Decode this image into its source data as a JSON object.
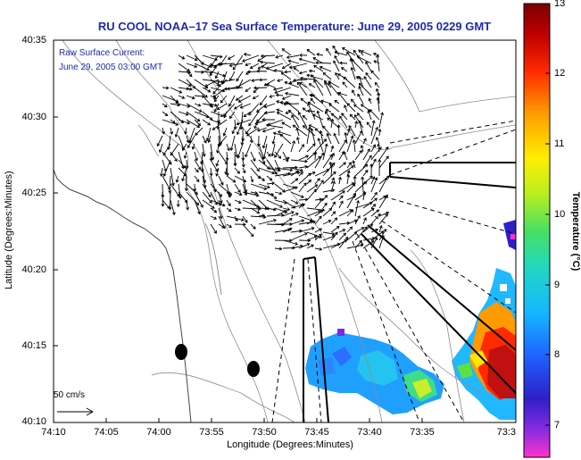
{
  "title": "RU COOL  NOAA–17  Sea Surface Temperature:  June 29, 2005 0229 GMT",
  "current_legend": {
    "line1": "Raw Surface Current:",
    "line2": "June 29, 2005 03:00 GMT"
  },
  "axes": {
    "xlabel": "Longitude (Degrees:Minutes)",
    "ylabel": "Latitude (Degrees:Minutes)",
    "x_ticks": [
      "74:10",
      "74:05",
      "74:00",
      "73:55",
      "73:50",
      "73:45",
      "73:40",
      "73:35",
      "73:3"
    ],
    "y_ticks": [
      "40:35",
      "40:30",
      "40:25",
      "40:20",
      "40:15",
      "40:10"
    ]
  },
  "colorbar": {
    "label": "Temperature (°C)",
    "ticks": [
      "13",
      "12",
      "11",
      "10",
      "9",
      "8",
      "7"
    ],
    "min": 6.5,
    "max": 13,
    "colors": [
      "#ff33cc",
      "#8a2be2",
      "#2d20c8",
      "#1f5fff",
      "#14b8ff",
      "#22d8c0",
      "#48e060",
      "#b8ee20",
      "#ffee00",
      "#ff9a00",
      "#ff2a00",
      "#c00000",
      "#7a0000"
    ]
  },
  "scale_arrow": {
    "label": "50 cm/s"
  },
  "colors": {
    "title": "#1f2ab0",
    "frame": "#000000",
    "contour": "#888888",
    "arrow": "#000000"
  }
}
